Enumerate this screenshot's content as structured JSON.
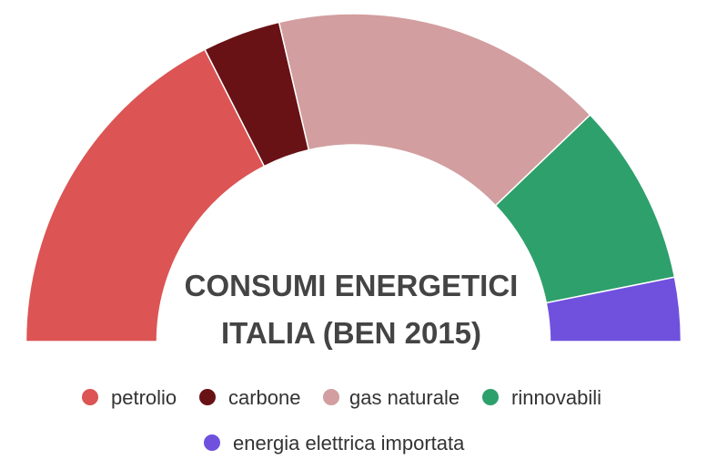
{
  "chart_data": {
    "type": "pie",
    "variant": "half-donut",
    "title_lines": [
      "CONSUMI ENERGETICI",
      "ITALIA (BEN 2015)"
    ],
    "legend_placement": "bottom",
    "slices": [
      {
        "label": "petrolio",
        "value": 35.0,
        "color": "#dc5454"
      },
      {
        "label": "carbone",
        "value": 7.7,
        "color": "#681216"
      },
      {
        "label": "gas naturale",
        "value": 33.0,
        "color": "#d29e9f"
      },
      {
        "label": "rinnovabili",
        "value": 18.0,
        "color": "#2ea06b"
      },
      {
        "label": "energia elettrica importata",
        "value": 6.3,
        "color": "#6f51de"
      }
    ]
  }
}
